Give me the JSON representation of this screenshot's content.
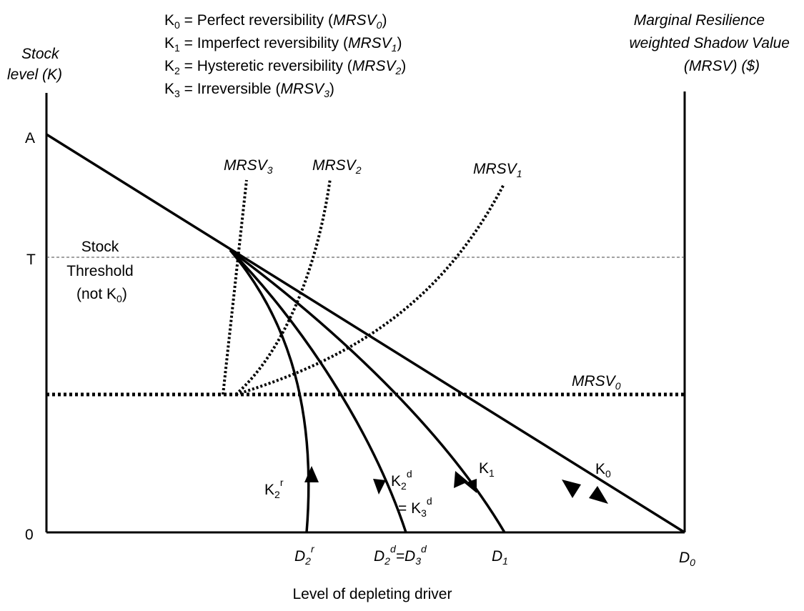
{
  "left_axis": {
    "title_line1": "Stock",
    "title_line2": "level (K)",
    "tick_A": "A",
    "tick_T": "T",
    "tick_0": "0"
  },
  "right_axis": {
    "title_line1": "Marginal Resilience",
    "title_line2": "weighted Shadow Value",
    "title_line3": "(MRSV) ($)"
  },
  "legend": [
    {
      "k": "K",
      "sub": "0",
      "desc": " = Perfect reversibility (",
      "m": "MRSV",
      "msub": "0",
      "close": ")"
    },
    {
      "k": "K",
      "sub": "1",
      "desc": " = Imperfect reversibility (",
      "m": "MRSV",
      "msub": "1",
      "close": ")"
    },
    {
      "k": "K",
      "sub": "2",
      "desc": " = Hysteretic reversibility (",
      "m": "MRSV",
      "msub": "2",
      "close": ")"
    },
    {
      "k": "K",
      "sub": "3",
      "desc": " = Irreversible (",
      "m": "MRSV",
      "msub": "3",
      "close": ")"
    }
  ],
  "threshold": {
    "line1": "Stock",
    "line2": "Threshold",
    "line3_a": "(not K",
    "line3_sub": "0",
    "line3_b": ")"
  },
  "mrsv_curves": {
    "m3": {
      "main": "MRSV",
      "sub": "3"
    },
    "m2": {
      "main": "MRSV",
      "sub": "2"
    },
    "m1": {
      "main": "MRSV",
      "sub": "1"
    },
    "m0": {
      "main": "MRSV",
      "sub": "0"
    }
  },
  "path_labels": {
    "k2r": {
      "main": "K",
      "sub": "2",
      "sup": "r"
    },
    "k2d": {
      "main": "K",
      "sub": "2",
      "sup": "d"
    },
    "k3d": {
      "prefix": "= K",
      "sub": "3",
      "sup": "d"
    },
    "k1": {
      "main": "K",
      "sub": "1"
    },
    "k0": {
      "main": "K",
      "sub": "0"
    }
  },
  "x_ticks": {
    "d2r": {
      "main": "D",
      "sub": "2",
      "sup": "r"
    },
    "d2d": {
      "main": "D",
      "sub": "2",
      "sup": "d",
      "eq": "=D",
      "sub2": "3",
      "sup2": "d"
    },
    "d1": {
      "main": "D",
      "sub": "1"
    },
    "d0": {
      "main": "D",
      "sub": "0"
    }
  },
  "x_axis_title": "Level of depleting driver"
}
